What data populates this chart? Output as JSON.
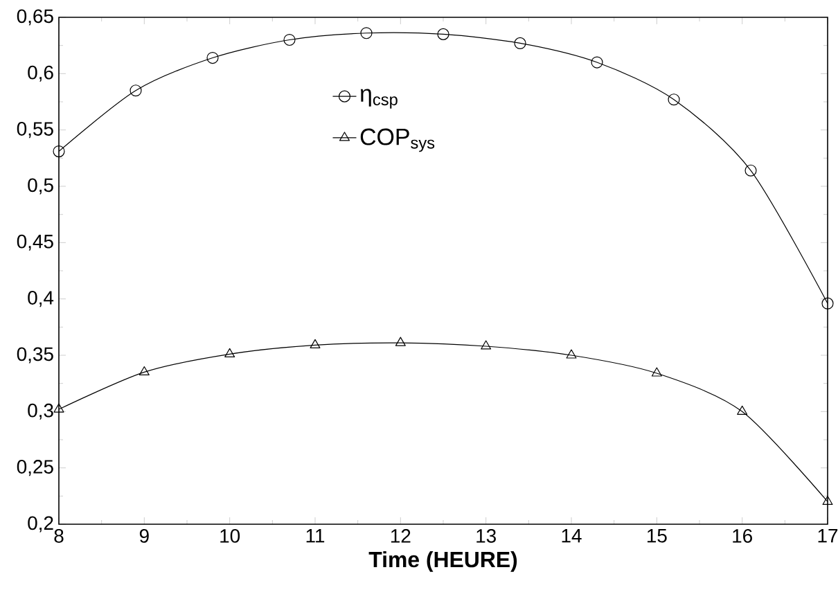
{
  "chart_data": {
    "type": "line",
    "xlabel": "Time (HEURE)",
    "xlim": [
      8,
      17
    ],
    "ylim": [
      0.2,
      0.65
    ],
    "xticks": [
      8,
      9,
      10,
      11,
      12,
      13,
      14,
      15,
      16,
      17
    ],
    "yticks": [
      {
        "value": 0.2,
        "label": "0,2"
      },
      {
        "value": 0.25,
        "label": "0,25"
      },
      {
        "value": 0.3,
        "label": "0,3"
      },
      {
        "value": 0.35,
        "label": "0,35"
      },
      {
        "value": 0.4,
        "label": "0,4"
      },
      {
        "value": 0.45,
        "label": "0,45"
      },
      {
        "value": 0.5,
        "label": "0,5"
      },
      {
        "value": 0.55,
        "label": "0,55"
      },
      {
        "value": 0.6,
        "label": "0,6"
      },
      {
        "value": 0.65,
        "label": "0,65"
      }
    ],
    "legend": "top",
    "grid": false,
    "series": [
      {
        "name": "η$_{csp}$",
        "color": "#000000",
        "marker": "circle",
        "x": [
          8,
          8.9,
          9.8,
          10.7,
          11.6,
          12.5,
          13.4,
          14.3,
          15.2,
          16.1,
          17
        ],
        "values": [
          0.531,
          0.585,
          0.614,
          0.63,
          0.636,
          0.635,
          0.627,
          0.61,
          0.577,
          0.514,
          0.396
        ]
      },
      {
        "name": "COP$_{sys}$",
        "color": "#000000",
        "marker": "triangle",
        "x": [
          8,
          9,
          10,
          11,
          12,
          13,
          14,
          15,
          16,
          17
        ],
        "values": [
          0.302,
          0.335,
          0.351,
          0.359,
          0.361,
          0.358,
          0.35,
          0.334,
          0.3,
          0.22
        ]
      }
    ]
  }
}
